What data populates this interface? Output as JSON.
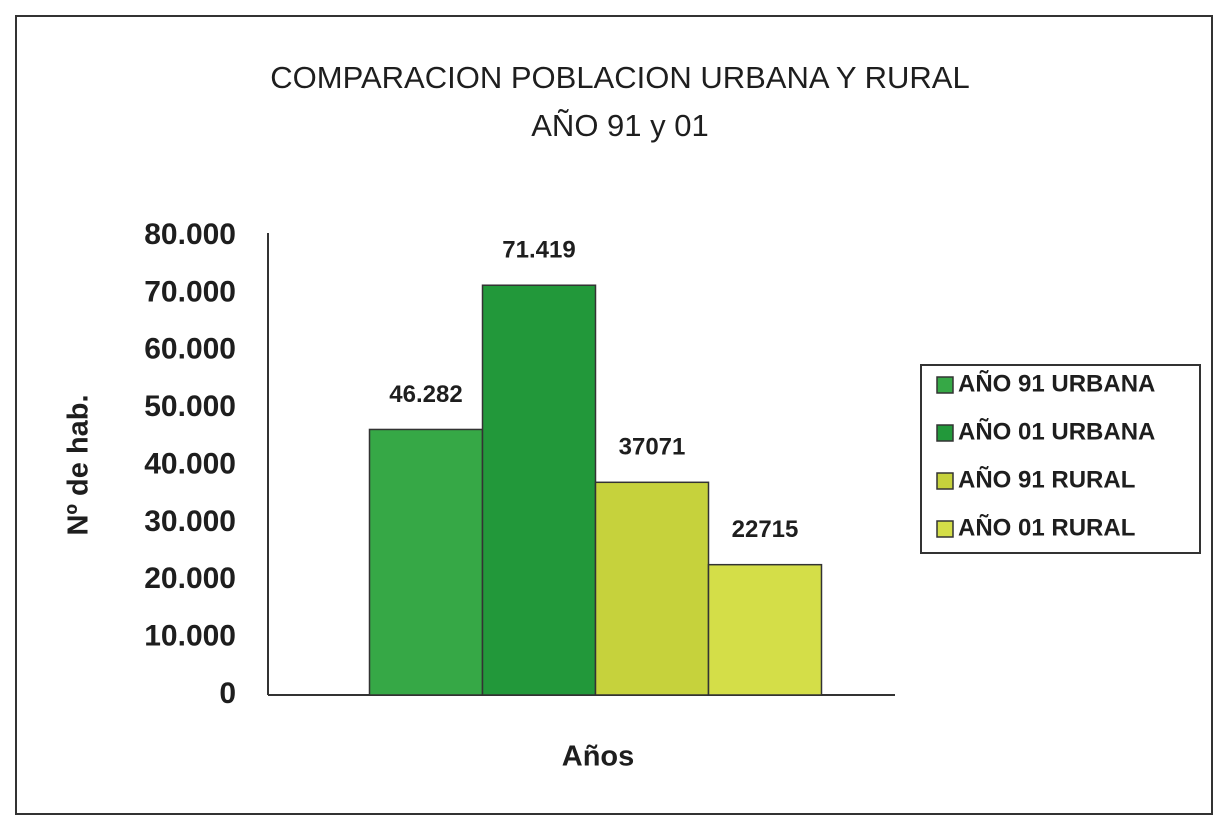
{
  "chart_data": {
    "type": "bar",
    "title": [
      "COMPARACION POBLACION URBANA Y RURAL",
      "AÑO 91 y 01"
    ],
    "x_label": "Años",
    "y_label": "Nº de hab.",
    "categories": [
      null
    ],
    "series": [
      {
        "name": "AÑO 91 URBANA",
        "color": "#36a846",
        "values": [
          46282
        ],
        "value_labels": [
          "46.282"
        ]
      },
      {
        "name": "AÑO 01 URBANA",
        "color": "#22983a",
        "values": [
          71419
        ],
        "value_labels": [
          "71.419"
        ]
      },
      {
        "name": "AÑO 91 RURAL",
        "color": "#c6d23c",
        "values": [
          37071
        ],
        "value_labels": [
          "37071"
        ]
      },
      {
        "name": "AÑO 01 RURAL",
        "color": "#d4de48",
        "values": [
          22715
        ],
        "value_labels": [
          "22715"
        ]
      }
    ],
    "ylim": [
      0,
      80000
    ],
    "yticks": [
      0,
      {
        "value": 10000,
        "label": "10.000"
      },
      {
        "value": 20000,
        "label": "20.000"
      },
      {
        "value": 30000,
        "label": "30.000"
      },
      {
        "value": 40000,
        "label": "40.000"
      },
      {
        "value": 50000,
        "label": "50.000"
      },
      {
        "value": 60000,
        "label": "60.000"
      },
      {
        "value": 70000,
        "label": "70.000"
      },
      {
        "value": 80000,
        "label": "80.000"
      }
    ],
    "grid": false,
    "legend": "right"
  }
}
